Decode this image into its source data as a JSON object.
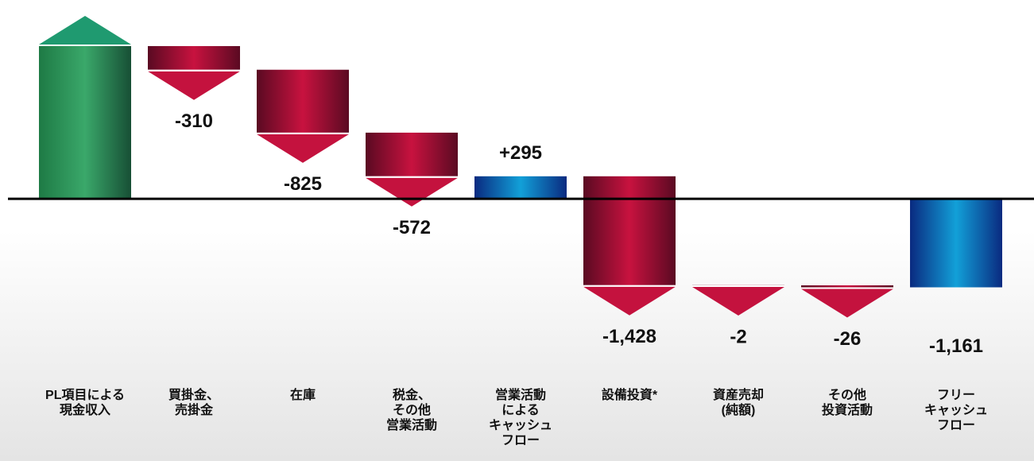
{
  "chart_data": {
    "type": "waterfall",
    "categories": [
      "PL項目による\n現金収入",
      "買掛金、\n売掛金",
      "在庫",
      "税金、\nその他\n営業活動",
      "営業活動\nによる\nキャッシュ\nフロー",
      "設備投資*",
      "資産売却\n(純額)",
      "その他\n投資活動",
      "フリー\nキャッシュ\nフロー"
    ],
    "values": [
      2002,
      -310,
      -825,
      -572,
      295,
      -1428,
      -2,
      -26,
      -1161
    ],
    "value_labels": [
      null,
      "-310",
      "-825",
      "-572",
      "+295",
      "-1,428",
      "-2",
      "-26",
      "-1,161"
    ],
    "measure": [
      "relative",
      "relative",
      "relative",
      "relative",
      "total",
      "relative",
      "relative",
      "relative",
      "total"
    ],
    "increase_color": "#2e9a5e",
    "decrease_color": "#c0103c",
    "total_color": "#1188c8",
    "ylim": [
      -2000,
      2450
    ]
  }
}
